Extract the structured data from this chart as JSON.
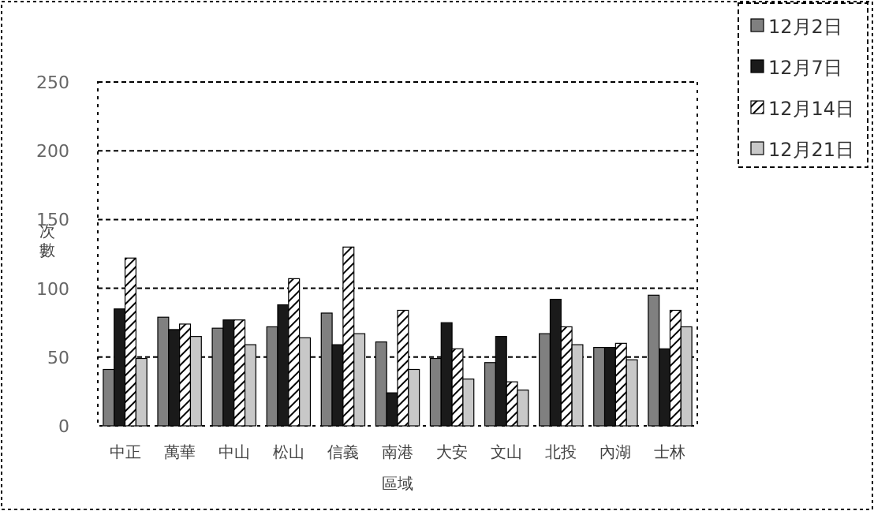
{
  "chart_data": {
    "type": "bar",
    "xlabel": "區域",
    "ylabel": "次數",
    "categories": [
      "中正",
      "萬華",
      "中山",
      "松山",
      "信義",
      "南港",
      "大安",
      "文山",
      "北投",
      "內湖",
      "士林"
    ],
    "series": [
      {
        "name": "12月2日",
        "color": "#808080",
        "values": [
          41,
          79,
          71,
          72,
          82,
          61,
          49,
          46,
          67,
          57,
          95
        ]
      },
      {
        "name": "12月7日",
        "color": "#1a1a1a",
        "values": [
          85,
          70,
          77,
          88,
          59,
          24,
          75,
          65,
          92,
          57,
          56
        ]
      },
      {
        "name": "12月14日",
        "color": "#000000",
        "values": [
          122,
          74,
          77,
          107,
          130,
          84,
          56,
          32,
          72,
          60,
          84
        ]
      },
      {
        "name": "12月21日",
        "color": "#c8c8c8",
        "values": [
          49,
          65,
          59,
          64,
          67,
          41,
          34,
          26,
          59,
          48,
          72
        ]
      }
    ],
    "ylim": [
      0,
      250
    ],
    "yticks": [
      0,
      50,
      100,
      150,
      200,
      250
    ],
    "grid": "y",
    "legend": "top right"
  }
}
